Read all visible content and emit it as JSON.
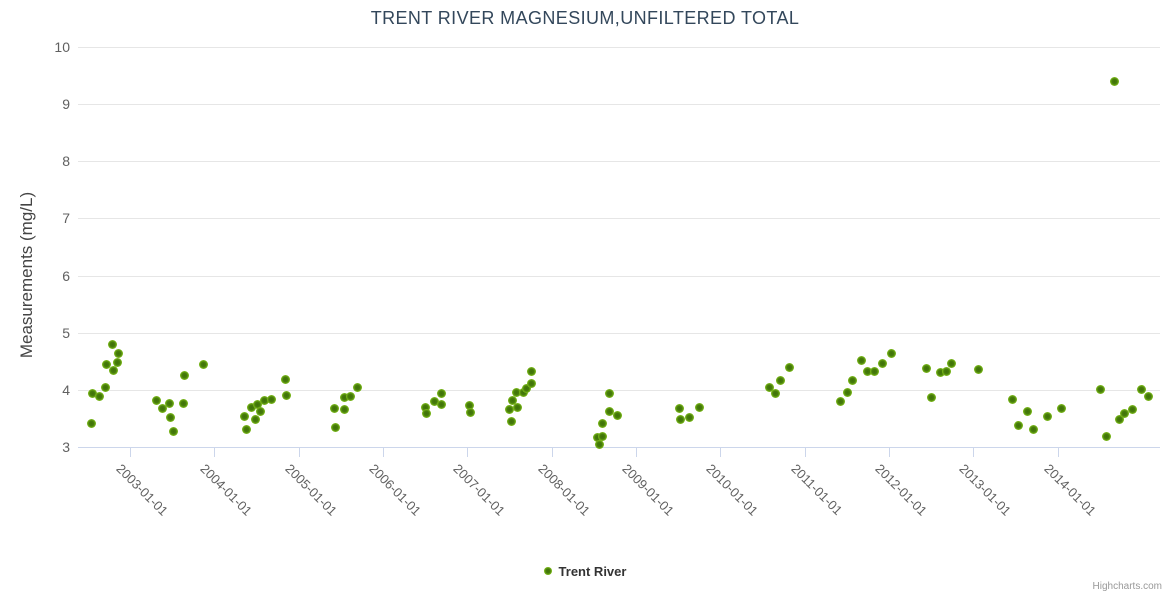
{
  "header": {
    "title": "TRENT RIVER MAGNESIUM,UNFILTERED TOTAL"
  },
  "legend": {
    "items": [
      {
        "label": "Trent River",
        "marker_color": "#7cba1a"
      }
    ]
  },
  "credits": {
    "label": "Highcharts.com"
  },
  "colors": {
    "marker_outer": "#7cba1a",
    "marker_core": "#3e7008",
    "title_text": "#33475b",
    "axis_label_text": "#606060",
    "y_title_text": "#444444",
    "gridline": "#e6e6e6",
    "axis_line": "#ccd6eb",
    "legend_text": "#333333",
    "credits_text": "#999999"
  },
  "chart_data": {
    "type": "scatter",
    "title": "TRENT RIVER MAGNESIUM,UNFILTERED TOTAL",
    "xlabel": "",
    "ylabel": "Measurements (mg/L)",
    "ylim": [
      3,
      10
    ],
    "yticks": [
      3,
      4,
      5,
      6,
      7,
      8,
      9,
      10
    ],
    "xticks": [
      "2003-01-01",
      "2004-01-01",
      "2005-01-01",
      "2006-01-01",
      "2007-01-01",
      "2008-01-01",
      "2009-01-01",
      "2010-01-01",
      "2011-01-01",
      "2012-01-01",
      "2013-01-01",
      "2014-01-01"
    ],
    "x_visible_range": [
      "2002-05-20",
      "2015-03-20"
    ],
    "grid": "horizontal-only",
    "legend_position": "bottom-center",
    "series": [
      {
        "name": "Trent River",
        "color": "#7cba1a",
        "points": [
          [
            "2002-07-16",
            3.41
          ],
          [
            "2002-07-23",
            3.93
          ],
          [
            "2002-08-21",
            3.88
          ],
          [
            "2002-09-18",
            4.04
          ],
          [
            "2002-09-20",
            4.44
          ],
          [
            "2002-10-17",
            4.79
          ],
          [
            "2002-10-19",
            4.34
          ],
          [
            "2002-11-06",
            4.48
          ],
          [
            "2002-11-13",
            4.64
          ],
          [
            "2003-04-27",
            3.81
          ],
          [
            "2003-05-23",
            3.67
          ],
          [
            "2003-06-22",
            3.77
          ],
          [
            "2003-06-25",
            3.51
          ],
          [
            "2003-07-09",
            3.28
          ],
          [
            "2003-08-18",
            3.77
          ],
          [
            "2003-08-26",
            4.26
          ],
          [
            "2003-11-14",
            4.44
          ],
          [
            "2004-05-12",
            3.53
          ],
          [
            "2004-05-18",
            3.3
          ],
          [
            "2004-06-09",
            3.7
          ],
          [
            "2004-06-25",
            3.49
          ],
          [
            "2004-07-04",
            3.74
          ],
          [
            "2004-07-20",
            3.63
          ],
          [
            "2004-08-07",
            3.81
          ],
          [
            "2004-09-06",
            3.84
          ],
          [
            "2004-11-02",
            4.19
          ],
          [
            "2004-11-07",
            3.91
          ],
          [
            "2005-06-06",
            3.67
          ],
          [
            "2005-06-09",
            3.35
          ],
          [
            "2005-07-16",
            3.65
          ],
          [
            "2005-07-18",
            3.86
          ],
          [
            "2005-08-11",
            3.88
          ],
          [
            "2005-09-10",
            4.05
          ],
          [
            "2006-07-05",
            3.69
          ],
          [
            "2006-07-08",
            3.58
          ],
          [
            "2006-08-11",
            3.79
          ],
          [
            "2006-09-10",
            3.93
          ],
          [
            "2006-09-12",
            3.75
          ],
          [
            "2007-01-11",
            3.72
          ],
          [
            "2007-01-14",
            3.6
          ],
          [
            "2007-07-03",
            3.65
          ],
          [
            "2007-07-12",
            3.44
          ],
          [
            "2007-07-16",
            3.82
          ],
          [
            "2007-08-03",
            3.96
          ],
          [
            "2007-08-05",
            3.7
          ],
          [
            "2007-09-02",
            3.95
          ],
          [
            "2007-09-12",
            4.02
          ],
          [
            "2007-10-04",
            4.12
          ],
          [
            "2007-10-06",
            4.32
          ],
          [
            "2008-07-19",
            3.16
          ],
          [
            "2008-07-28",
            3.05
          ],
          [
            "2008-08-06",
            3.42
          ],
          [
            "2008-08-10",
            3.18
          ],
          [
            "2008-09-06",
            3.93
          ],
          [
            "2008-09-08",
            3.63
          ],
          [
            "2008-10-12",
            3.56
          ],
          [
            "2009-07-09",
            3.67
          ],
          [
            "2009-07-11",
            3.49
          ],
          [
            "2009-08-18",
            3.51
          ],
          [
            "2009-10-04",
            3.69
          ],
          [
            "2010-07-31",
            4.04
          ],
          [
            "2010-08-26",
            3.93
          ],
          [
            "2010-09-17",
            4.16
          ],
          [
            "2010-10-27",
            4.39
          ],
          [
            "2011-06-06",
            3.79
          ],
          [
            "2011-07-05",
            3.96
          ],
          [
            "2011-07-27",
            4.16
          ],
          [
            "2011-09-05",
            4.51
          ],
          [
            "2011-09-28",
            4.33
          ],
          [
            "2011-10-30",
            4.33
          ],
          [
            "2011-12-06",
            4.47
          ],
          [
            "2012-01-14",
            4.63
          ],
          [
            "2012-06-10",
            4.37
          ],
          [
            "2012-07-05",
            3.86
          ],
          [
            "2012-08-10",
            4.3
          ],
          [
            "2012-09-05",
            4.32
          ],
          [
            "2012-09-27",
            4.47
          ],
          [
            "2013-01-22",
            4.35
          ],
          [
            "2013-06-17",
            3.84
          ],
          [
            "2013-07-16",
            3.37
          ],
          [
            "2013-08-25",
            3.63
          ],
          [
            "2013-09-20",
            3.3
          ],
          [
            "2013-11-17",
            3.54
          ],
          [
            "2014-01-18",
            3.67
          ],
          [
            "2014-07-05",
            4.0
          ],
          [
            "2014-07-31",
            3.18
          ],
          [
            "2014-09-05",
            9.4
          ],
          [
            "2014-09-27",
            3.49
          ],
          [
            "2014-10-19",
            3.58
          ],
          [
            "2014-11-21",
            3.65
          ],
          [
            "2014-12-28",
            4.0
          ],
          [
            "2015-01-29",
            3.88
          ]
        ]
      }
    ]
  }
}
